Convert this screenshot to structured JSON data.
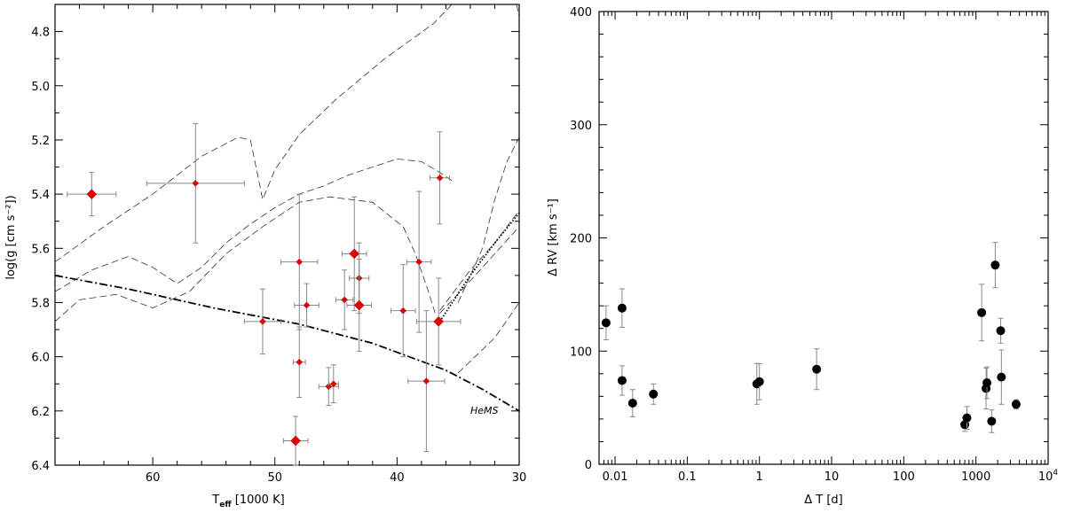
{
  "chart_data": [
    {
      "type": "scatter",
      "xlabel": "T",
      "xlabel_sub": "eff",
      "xlabel_unit": " [1000 K]",
      "ylabel": "log(g [cm s⁻²])",
      "xlim": [
        68,
        30
      ],
      "ylim": [
        4.7,
        6.4
      ],
      "x_ticks": [
        "60",
        "50",
        "40",
        "30"
      ],
      "y_ticks": [
        "4.8",
        "5.0",
        "5.2",
        "5.4",
        "5.6",
        "5.8",
        "6.0",
        "6.2",
        "6.4"
      ],
      "annotation": "HeMS",
      "marker_color": "#e00000",
      "points": [
        {
          "x": 65.0,
          "y": 5.4,
          "xerr": 2.0,
          "yerr": 0.08,
          "big": true
        },
        {
          "x": 56.5,
          "y": 5.36,
          "xerr": 4.0,
          "yerr": 0.22,
          "big": false
        },
        {
          "x": 36.5,
          "y": 5.34,
          "xerr": 0.8,
          "yerr": 0.17,
          "big": false
        },
        {
          "x": 43.5,
          "y": 5.62,
          "xerr": 1.0,
          "yerr": 0.21,
          "big": true
        },
        {
          "x": 48.0,
          "y": 5.65,
          "xerr": 1.5,
          "yerr": 0.25,
          "big": false
        },
        {
          "x": 38.2,
          "y": 5.65,
          "xerr": 1.0,
          "yerr": 0.26,
          "big": false
        },
        {
          "x": 43.1,
          "y": 5.71,
          "xerr": 0.8,
          "yerr": 0.13,
          "big": false
        },
        {
          "x": 44.3,
          "y": 5.79,
          "xerr": 0.7,
          "yerr": 0.11,
          "big": false
        },
        {
          "x": 47.4,
          "y": 5.81,
          "xerr": 1.0,
          "yerr": 0.08,
          "big": false
        },
        {
          "x": 43.1,
          "y": 5.81,
          "xerr": 1.0,
          "yerr": 0.17,
          "big": true
        },
        {
          "x": 39.5,
          "y": 5.83,
          "xerr": 1.0,
          "yerr": 0.17,
          "big": false
        },
        {
          "x": 51.0,
          "y": 5.87,
          "xerr": 1.5,
          "yerr": 0.12,
          "big": false
        },
        {
          "x": 36.6,
          "y": 5.87,
          "xerr": 1.8,
          "yerr": 0.16,
          "big": true
        },
        {
          "x": 48.0,
          "y": 6.02,
          "xerr": 0.5,
          "yerr": 0.13,
          "big": false
        },
        {
          "x": 37.6,
          "y": 6.09,
          "xerr": 1.5,
          "yerr": 0.26,
          "big": false
        },
        {
          "x": 45.6,
          "y": 6.11,
          "xerr": 0.8,
          "yerr": 0.07,
          "big": false
        },
        {
          "x": 45.2,
          "y": 6.1,
          "xerr": 0.4,
          "yerr": 0.07,
          "big": false
        },
        {
          "x": 48.3,
          "y": 6.31,
          "xerr": 1.0,
          "yerr": 0.09,
          "big": true
        }
      ],
      "curves": [
        {
          "name": "hems",
          "style": "dashdot",
          "points": [
            [
              68,
              5.7
            ],
            [
              62,
              5.75
            ],
            [
              55,
              5.82
            ],
            [
              48,
              5.88
            ],
            [
              42,
              5.95
            ],
            [
              36,
              6.05
            ],
            [
              33,
              6.12
            ],
            [
              30,
              6.2
            ]
          ]
        },
        {
          "name": "track-1",
          "style": "dashed",
          "points": [
            [
              68,
              5.65
            ],
            [
              64,
              5.52
            ],
            [
              60,
              5.4
            ],
            [
              56,
              5.26
            ],
            [
              53,
              5.19
            ],
            [
              52,
              5.2
            ],
            [
              51,
              5.42
            ],
            [
              50,
              5.31
            ],
            [
              48,
              5.18
            ],
            [
              45,
              5.05
            ],
            [
              41,
              4.9
            ],
            [
              37,
              4.77
            ],
            [
              35.5,
              4.7
            ]
          ]
        },
        {
          "name": "track-2",
          "style": "dashed",
          "points": [
            [
              68,
              5.76
            ],
            [
              65,
              5.68
            ],
            [
              62,
              5.63
            ],
            [
              60,
              5.67
            ],
            [
              58,
              5.73
            ],
            [
              56,
              5.67
            ],
            [
              54,
              5.58
            ],
            [
              52,
              5.51
            ],
            [
              50,
              5.45
            ],
            [
              48,
              5.4
            ],
            [
              46,
              5.37
            ],
            [
              44,
              5.33
            ],
            [
              42,
              5.3
            ],
            [
              40,
              5.27
            ],
            [
              38,
              5.28
            ],
            [
              36.5,
              5.32
            ],
            [
              35.5,
              5.35
            ]
          ]
        },
        {
          "name": "track-3",
          "style": "dashed",
          "points": [
            [
              68,
              5.87
            ],
            [
              66,
              5.79
            ],
            [
              63,
              5.77
            ],
            [
              60,
              5.82
            ],
            [
              57,
              5.76
            ],
            [
              54,
              5.62
            ],
            [
              51,
              5.52
            ],
            [
              48,
              5.43
            ],
            [
              45.5,
              5.41
            ],
            [
              42,
              5.43
            ],
            [
              39.5,
              5.52
            ],
            [
              38.5,
              5.62
            ],
            [
              37.5,
              5.75
            ],
            [
              36.8,
              5.85
            ]
          ]
        },
        {
          "name": "track-upper-right",
          "style": "dashed",
          "points": [
            [
              30.2,
              4.7
            ],
            [
              30,
              4.75
            ]
          ]
        },
        {
          "name": "track-right-1",
          "style": "dashed",
          "points": [
            [
              36.5,
              5.83
            ],
            [
              34,
              5.68
            ],
            [
              32,
              5.58
            ],
            [
              30,
              5.46
            ]
          ]
        },
        {
          "name": "track-right-2",
          "style": "dashed",
          "points": [
            [
              36.5,
              5.84
            ],
            [
              34,
              5.72
            ],
            [
              32,
              5.62
            ],
            [
              30,
              5.52
            ]
          ]
        },
        {
          "name": "track-right-3",
          "style": "dashed",
          "points": [
            [
              35,
              5.8
            ],
            [
              33,
              5.6
            ],
            [
              32,
              5.42
            ],
            [
              31,
              5.28
            ],
            [
              30,
              5.19
            ]
          ]
        },
        {
          "name": "track-lower-right",
          "style": "dashed",
          "points": [
            [
              35,
              6.06
            ],
            [
              32,
              5.93
            ],
            [
              30,
              5.8
            ]
          ]
        },
        {
          "name": "dotted",
          "style": "dotted",
          "points": [
            [
              36.5,
              5.87
            ],
            [
              34,
              5.7
            ],
            [
              32,
              5.58
            ],
            [
              30,
              5.47
            ]
          ]
        }
      ]
    },
    {
      "type": "scatter",
      "xscale": "log",
      "xlabel": "Δ T  [d]",
      "ylabel": "Δ RV  [km s⁻¹]",
      "xlim": [
        0.006,
        10000
      ],
      "ylim": [
        0,
        400
      ],
      "x_ticks": [
        {
          "v": 0.01,
          "label": "0.01"
        },
        {
          "v": 0.1,
          "label": "0.1"
        },
        {
          "v": 1,
          "label": "1"
        },
        {
          "v": 10,
          "label": "10"
        },
        {
          "v": 100,
          "label": "100"
        },
        {
          "v": 1000,
          "label": "1000"
        },
        {
          "v": 10000,
          "label": "10",
          "sup": "4"
        }
      ],
      "y_ticks": [
        "0",
        "100",
        "200",
        "300",
        "400"
      ],
      "marker_color": "#000000",
      "points": [
        {
          "x": 0.0075,
          "y": 125,
          "yerr": 15
        },
        {
          "x": 0.0125,
          "y": 138,
          "yerr": 17
        },
        {
          "x": 0.0125,
          "y": 74,
          "yerr": 13
        },
        {
          "x": 0.0175,
          "y": 54,
          "yerr": 12
        },
        {
          "x": 0.034,
          "y": 62,
          "yerr": 9
        },
        {
          "x": 0.92,
          "y": 71,
          "yerr": 18
        },
        {
          "x": 1.0,
          "y": 73,
          "yerr": 16
        },
        {
          "x": 6.2,
          "y": 84,
          "yerr": 18
        },
        {
          "x": 700,
          "y": 35,
          "yerr": 6
        },
        {
          "x": 750,
          "y": 41,
          "yerr": 10
        },
        {
          "x": 1200,
          "y": 134,
          "yerr": 25
        },
        {
          "x": 1380,
          "y": 67,
          "yerr": 18
        },
        {
          "x": 1420,
          "y": 72,
          "yerr": 14
        },
        {
          "x": 1650,
          "y": 38,
          "yerr": 10
        },
        {
          "x": 1850,
          "y": 176,
          "yerr": 20
        },
        {
          "x": 2200,
          "y": 118,
          "yerr": 11
        },
        {
          "x": 2250,
          "y": 77,
          "yerr": 24
        },
        {
          "x": 3600,
          "y": 53,
          "yerr": 4
        }
      ]
    }
  ]
}
